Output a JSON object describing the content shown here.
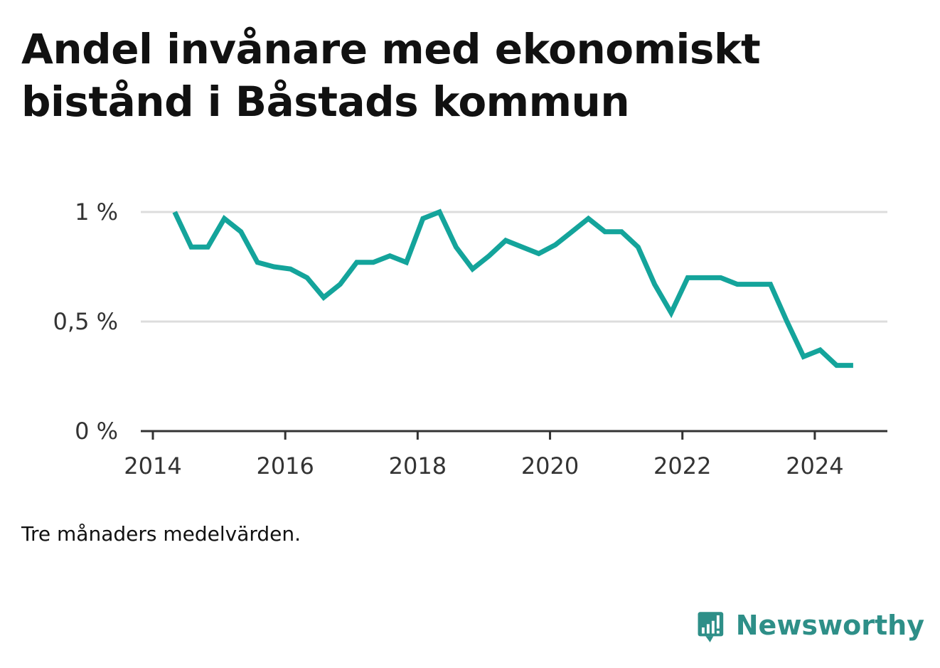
{
  "title_lines": [
    "Andel invånare med ekonomiskt",
    "bistånd i Båstads kommun"
  ],
  "footnote": "Tre månaders medelvärden.",
  "brand": "Newsworthy",
  "colors": {
    "line": "#14a49b",
    "grid": "#dddddd",
    "axis": "#333333",
    "brand": "#2e8f88"
  },
  "chart_data": {
    "type": "line",
    "title": "Andel invånare med ekonomiskt bistånd i Båstads kommun",
    "xlabel": "",
    "ylabel": "",
    "x_ticks": [
      "2014",
      "2016",
      "2018",
      "2020",
      "2022",
      "2024"
    ],
    "y_ticks": [
      "0 %",
      "0,5 %",
      "1 %"
    ],
    "y_tick_values": [
      0,
      0.5,
      1.0
    ],
    "xlim": [
      2014.0,
      2025.0
    ],
    "ylim": [
      0,
      1.0
    ],
    "grid": true,
    "series": [
      {
        "x": [
          2014.33,
          2014.58,
          2014.83,
          2015.08,
          2015.33,
          2015.58,
          2015.83,
          2016.08,
          2016.33,
          2016.58,
          2016.83,
          2017.08,
          2017.33,
          2017.58,
          2017.83,
          2018.08,
          2018.33,
          2018.58,
          2018.83,
          2019.08,
          2019.33,
          2019.58,
          2019.83,
          2020.08,
          2020.33,
          2020.58,
          2020.83,
          2021.08,
          2021.33,
          2021.58,
          2021.83,
          2022.08,
          2022.33,
          2022.58,
          2022.83,
          2023.08,
          2023.33,
          2023.58,
          2023.83,
          2024.08,
          2024.33,
          2024.58
        ],
        "values": [
          1.0,
          0.84,
          0.84,
          0.97,
          0.91,
          0.77,
          0.75,
          0.74,
          0.7,
          0.61,
          0.67,
          0.77,
          0.77,
          0.8,
          0.77,
          0.97,
          1.0,
          0.84,
          0.74,
          0.8,
          0.87,
          0.84,
          0.81,
          0.85,
          0.91,
          0.97,
          0.91,
          0.91,
          0.84,
          0.67,
          0.54,
          0.7,
          0.7,
          0.7,
          0.67,
          0.67,
          0.67,
          0.5,
          0.34,
          0.37,
          0.3,
          0.3
        ]
      }
    ]
  }
}
